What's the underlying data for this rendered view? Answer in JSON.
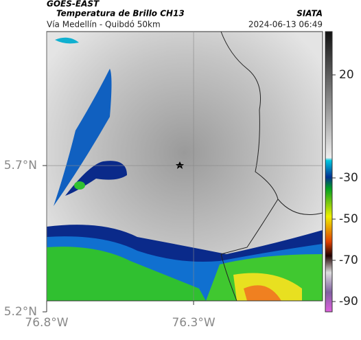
{
  "header": {
    "title": "GOES-EAST",
    "subtitle": "Temperatura de Brillo CH13",
    "region": "Vía Medellín - Quibdó 50km",
    "source": "SIATA",
    "timestamp": "2024-06-13 06:49"
  },
  "map": {
    "xlim": [
      -76.8,
      -75.861
    ],
    "ylim": [
      5.2,
      6.158
    ],
    "xticks": [
      {
        "value": -76.8,
        "label": "76.8°W"
      },
      {
        "value": -76.3,
        "label": "76.3°W"
      }
    ],
    "yticks": [
      {
        "value": 5.2,
        "label": "5.2°N"
      },
      {
        "value": 5.7,
        "label": "5.7°N"
      }
    ],
    "grid": true
  },
  "colorbar": {
    "lim": [
      -95,
      41
    ],
    "ticks": [
      20,
      -30,
      -50,
      -70,
      -90
    ]
  }
}
